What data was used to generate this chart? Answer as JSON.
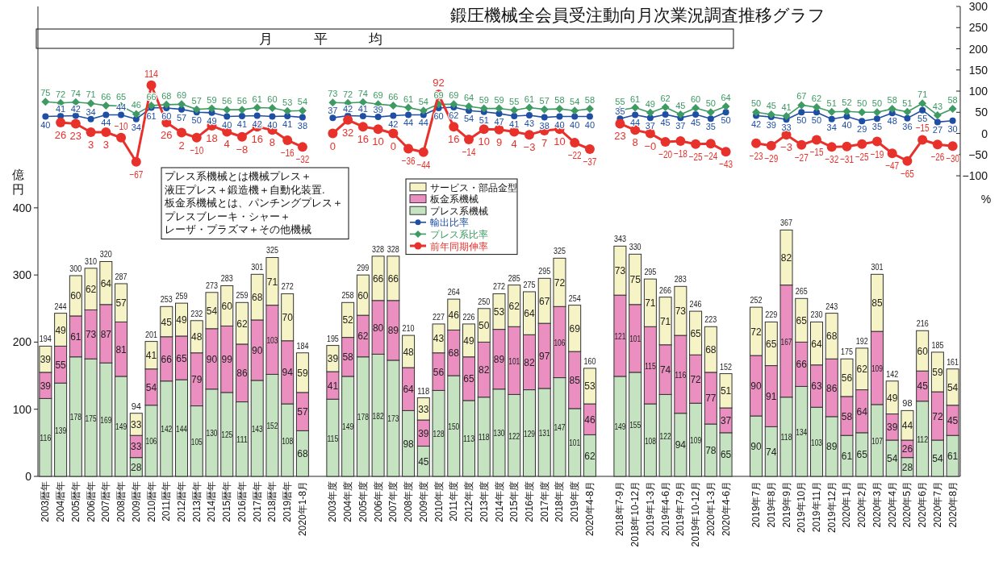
{
  "chart_data": {
    "type": "bar",
    "stacked": true,
    "title": "鍛圧機械全会員受注動向月次業況調査推移グラフ",
    "subtitle": "月　　　平　　　均",
    "ylabel": "億円",
    "y2label": "%",
    "annotations": [
      "プレス系機械とは機械プレス＋",
      "液圧プレス＋鍛造機＋自動化装置.",
      "板金系機械とは、パンチングプレス＋",
      "プレスブレーキ・シャー＋",
      "レーザ・プラズマ＋その他機械"
    ],
    "categories": [
      "2003暦年",
      "2004暦年",
      "2005暦年",
      "2006暦年",
      "2007暦年",
      "2008暦年",
      "2009暦年",
      "2010暦年",
      "2011暦年",
      "2012暦年",
      "2013暦年",
      "2014暦年",
      "2015暦年",
      "2016暦年",
      "2017暦年",
      "2018暦年",
      "2019暦年",
      "2020年1-8月",
      null,
      "2003年度",
      "2004年度",
      "2005年度",
      "2006年度",
      "2007年度",
      "2008年度",
      "2009年度",
      "2010年度",
      "2011年度",
      "2012年度",
      "2013年度",
      "2014年度",
      "2015年度",
      "2016年度",
      "2017年度",
      "2018年度",
      "2019年度",
      "2020年4-8月",
      null,
      "2018年7-9月",
      "2018年10-12月",
      "2019年1-3月",
      "2019年4-6月",
      "2019年7-9月",
      "2019年10-12月",
      "2020年1-3月",
      "2020年4-6月",
      null,
      "2019年7月",
      "2019年8月",
      "2019年9月",
      "2019年10月",
      "2019年11月",
      "2019年12月",
      "2020年1月",
      "2020年2月",
      "2020年3月",
      "2020年4月",
      "2020年5月",
      "2020年6月",
      "2020年7月",
      "2020年8月"
    ],
    "series": [
      {
        "name": "プレス系機械",
        "type": "bar",
        "color": "#c5e3c0",
        "values": [
          116,
          139,
          178,
          175,
          169,
          149,
          28,
          106,
          142,
          144,
          105,
          130,
          125,
          111,
          143,
          152,
          108,
          68,
          null,
          115,
          149,
          178,
          182,
          173,
          98,
          45,
          128,
          150,
          113,
          118,
          130,
          122,
          129,
          131,
          147,
          101,
          62,
          null,
          149,
          155,
          108,
          122,
          94,
          109,
          78,
          65,
          null,
          90,
          74,
          118,
          134,
          103,
          89,
          61,
          65,
          107,
          54,
          28,
          112,
          54,
          61
        ]
      },
      {
        "name": "板金系機械",
        "type": "bar",
        "color": "#ea8fc0",
        "values": [
          39,
          55,
          61,
          73,
          87,
          81,
          33,
          54,
          66,
          65,
          79,
          90,
          99,
          86,
          90,
          103,
          94,
          57,
          null,
          41,
          58,
          62,
          80,
          89,
          64,
          39,
          56,
          68,
          65,
          82,
          89,
          101,
          82,
          97,
          106,
          85,
          46,
          null,
          121,
          101,
          115,
          74,
          116,
          72,
          77,
          37,
          null,
          90,
          91,
          167,
          66,
          63,
          86,
          58,
          64,
          109,
          39,
          26,
          45,
          72,
          45
        ]
      },
      {
        "name": "サービス・部品金型",
        "type": "bar",
        "color": "#f6f4c6",
        "values": [
          39,
          49,
          60,
          62,
          64,
          57,
          33,
          41,
          45,
          49,
          48,
          54,
          60,
          62,
          68,
          71,
          70,
          59,
          null,
          39,
          52,
          60,
          66,
          66,
          48,
          33,
          43,
          46,
          49,
          50,
          53,
          62,
          64,
          67,
          72,
          69,
          53,
          null,
          73,
          75,
          71,
          71,
          73,
          65,
          68,
          51,
          null,
          72,
          65,
          82,
          65,
          64,
          68,
          56,
          62,
          85,
          49,
          44,
          60,
          59,
          54
        ]
      },
      {
        "name": "輸出比率",
        "type": "line",
        "axis": "y2",
        "color": "#1f4fa5",
        "marker": "circle",
        "values": [
          40,
          41,
          42,
          34,
          44,
          44,
          34,
          61,
          60,
          57,
          50,
          49,
          40,
          41,
          42,
          40,
          41,
          38,
          null,
          37,
          42,
          41,
          39,
          42,
          44,
          44,
          60,
          62,
          54,
          51,
          47,
          41,
          43,
          38,
          40,
          40,
          40,
          null,
          35,
          44,
          37,
          45,
          37,
          45,
          35,
          50,
          null,
          42,
          39,
          33,
          50,
          50,
          34,
          40,
          29,
          35,
          48,
          36,
          55,
          27,
          30
        ]
      },
      {
        "name": "プレス系比率",
        "type": "line",
        "axis": "y2",
        "color": "#3d9a62",
        "marker": "diamond",
        "values": [
          75,
          72,
          74,
          71,
          66,
          65,
          46,
          66,
          68,
          69,
          57,
          59,
          56,
          56,
          61,
          60,
          53,
          54,
          null,
          73,
          72,
          74,
          69,
          66,
          61,
          54,
          69,
          69,
          64,
          59,
          59,
          55,
          61,
          57,
          58,
          54,
          58,
          null,
          55,
          61,
          49,
          62,
          45,
          60,
          50,
          64,
          null,
          50,
          45,
          41,
          67,
          62,
          51,
          52,
          50,
          50,
          58,
          51,
          71,
          43,
          58
        ]
      },
      {
        "name": "前年同期伸率",
        "type": "line",
        "axis": "y2",
        "color": "#e8312b",
        "marker": "circle",
        "values": [
          null,
          26,
          23,
          3,
          3,
          -10,
          -67,
          114,
          26,
          2,
          -10,
          18,
          4,
          -8,
          16,
          8,
          -16,
          -32,
          null,
          0,
          32,
          16,
          10,
          0,
          -36,
          -44,
          92,
          16,
          -14,
          10,
          9,
          4,
          -3,
          7,
          10,
          -22,
          -37,
          null,
          23,
          8,
          0,
          -20,
          -18,
          -25,
          -24,
          -43,
          null,
          -23,
          -29,
          -3,
          -27,
          -15,
          -32,
          -31,
          -25,
          -19,
          -47,
          -65,
          -15,
          -26,
          -30
        ],
        "value_labels": [
          null,
          "26",
          "23",
          "3",
          "3",
          "−10",
          "−67",
          "114",
          "26",
          "2",
          "−10",
          "18",
          "4",
          "−8",
          "16",
          "8",
          "−16",
          "−32",
          null,
          "0",
          "32",
          "16",
          "10",
          "0",
          "−36",
          "−44",
          "92",
          "16",
          "−14",
          "10",
          "9",
          "4",
          "−3",
          "7",
          "10",
          "−22",
          "−37",
          null,
          "23",
          "8",
          "−0",
          "−20",
          "−18",
          "−25",
          "−24",
          "−43",
          null,
          "−23",
          "−29",
          "−3",
          "−27",
          "−15",
          "−32",
          "−31",
          "−25",
          "−19",
          "−47",
          "−65",
          "−15",
          "−26",
          "−30"
        ]
      }
    ],
    "totals": [
      "194",
      "244",
      "300",
      "310",
      "320",
      "287",
      "94",
      "201",
      "253",
      "259",
      "232",
      "273",
      "283",
      "259",
      "301",
      "325",
      "272",
      "184",
      null,
      "195",
      "258",
      "299",
      "328",
      "328",
      "210",
      "118",
      "227",
      "264",
      "226",
      "250",
      "272",
      "285",
      "275",
      "295",
      "325",
      "254",
      "160",
      null,
      "343",
      "330",
      "295",
      "266",
      "283",
      "246",
      "223",
      "152",
      null,
      "252",
      "229",
      "367",
      "265",
      "230",
      "243",
      "175",
      "192",
      "301",
      "142",
      "98",
      "216",
      "185",
      "161"
    ],
    "data_labels": true,
    "legend": "center",
    "ylim": [
      0,
      700
    ],
    "yticks": [
      0,
      100,
      200,
      300,
      400
    ],
    "y2lim": [
      -810,
      300
    ],
    "y2ticks": [
      300,
      250,
      200,
      150,
      100,
      50,
      0,
      {
        "value": -50,
        "label": "−50"
      },
      {
        "value": -100,
        "label": "−100"
      }
    ]
  }
}
